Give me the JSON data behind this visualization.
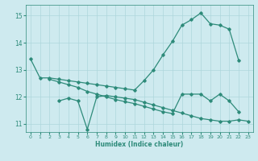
{
  "xlabel": "Humidex (Indice chaleur)",
  "bg_color": "#ceeaef",
  "line_color": "#2e8b7a",
  "grid_color": "#aed6dc",
  "xlim": [
    -0.5,
    23.5
  ],
  "ylim": [
    10.7,
    15.4
  ],
  "yticks": [
    11,
    12,
    13,
    14,
    15
  ],
  "xticks": [
    0,
    1,
    2,
    3,
    4,
    5,
    6,
    7,
    8,
    9,
    10,
    11,
    12,
    13,
    14,
    15,
    16,
    17,
    18,
    19,
    20,
    21,
    22,
    23
  ],
  "line1_y": [
    13.4,
    12.7,
    12.7,
    12.65,
    12.6,
    12.55,
    12.5,
    12.45,
    12.4,
    12.35,
    12.3,
    12.25,
    12.6,
    13.0,
    13.55,
    14.05,
    14.65,
    14.85,
    15.1,
    14.7,
    14.65,
    14.5,
    13.35,
    null
  ],
  "line2_y": [
    null,
    null,
    null,
    11.85,
    11.95,
    11.85,
    10.8,
    12.0,
    12.05,
    12.0,
    11.95,
    11.9,
    11.8,
    11.7,
    11.6,
    11.5,
    11.4,
    11.3,
    11.2,
    11.15,
    11.1,
    11.1,
    11.15,
    11.1
  ],
  "line3_y": [
    null,
    null,
    12.65,
    12.55,
    12.45,
    12.35,
    12.2,
    12.1,
    12.0,
    11.9,
    11.82,
    11.75,
    11.65,
    11.55,
    11.45,
    11.38,
    12.1,
    12.1,
    12.1,
    11.85,
    12.1,
    11.85,
    11.45,
    null
  ]
}
